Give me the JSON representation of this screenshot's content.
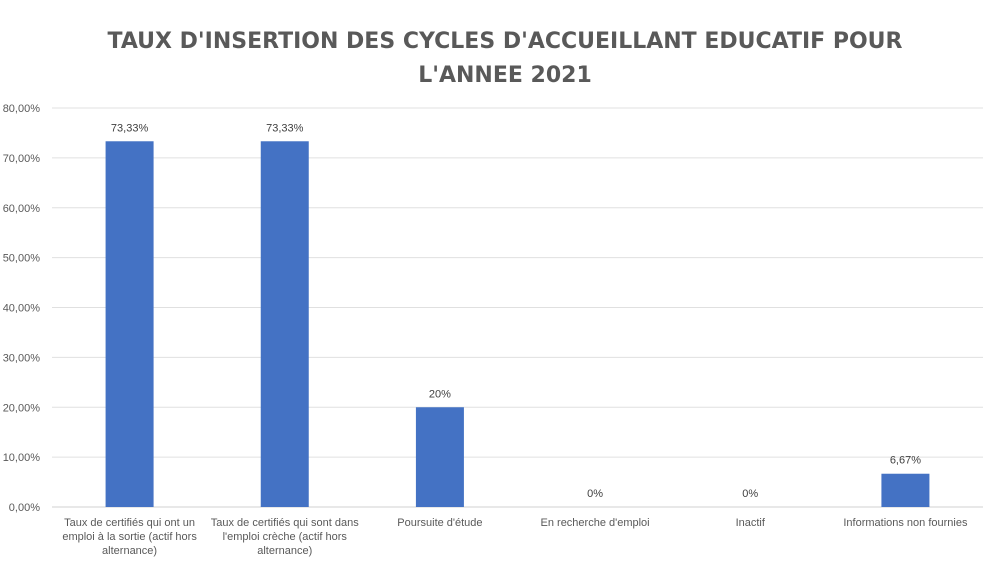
{
  "chart_data": {
    "type": "bar",
    "title": [
      "TAUX D'INSERTION DES CYCLES D'ACCUEILLANT EDUCATIF POUR",
      "L'ANNEE 2021"
    ],
    "categories": [
      [
        "Taux de certifiés qui ont un",
        "emploi à la sortie (actif hors",
        "alternance)"
      ],
      [
        "Taux de certifiés qui sont dans",
        "l'emploi crèche (actif hors",
        "alternance)"
      ],
      [
        "Poursuite d'étude"
      ],
      [
        "En recherche d'emploi"
      ],
      [
        "Inactif"
      ],
      [
        "Informations non fournies"
      ]
    ],
    "values": [
      73.33,
      73.33,
      20,
      0,
      0,
      6.67
    ],
    "data_labels": [
      "73,33%",
      "73,33%",
      "20%",
      "0%",
      "0%",
      "6,67%"
    ],
    "ylim": [
      0,
      80
    ],
    "yticks": [
      0,
      10,
      20,
      30,
      40,
      50,
      60,
      70,
      80
    ],
    "ytick_labels": [
      "0,00%",
      "10,00%",
      "20,00%",
      "30,00%",
      "40,00%",
      "50,00%",
      "60,00%",
      "70,00%",
      "80,00%"
    ],
    "xlabel": "",
    "ylabel": "",
    "grid": true,
    "legend": "none",
    "bar_color": "#4472C4"
  }
}
